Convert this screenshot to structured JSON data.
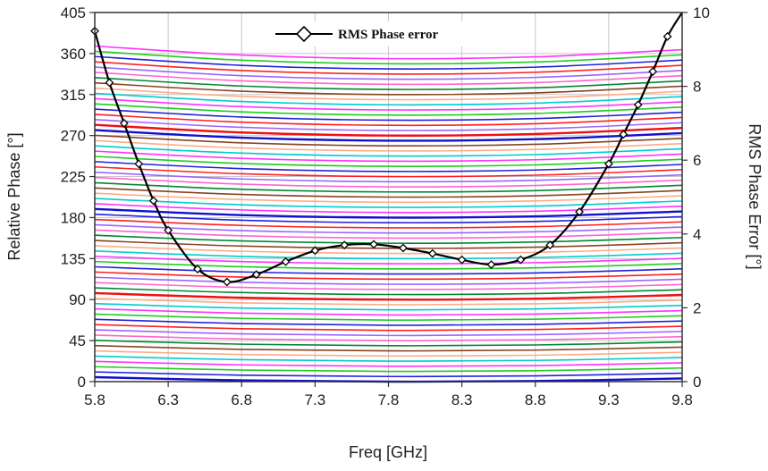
{
  "chart_data": {
    "type": "line",
    "title": "",
    "xlabel": "Freq [GHz]",
    "ylabel": "Relative Phase [°]",
    "y2label": "RMS Phase Error [°]",
    "xlim": [
      5.8,
      9.8
    ],
    "ylim": [
      0,
      405
    ],
    "y2lim": [
      0,
      10
    ],
    "x_ticks": [
      "5.8",
      "6.3",
      "6.8",
      "7.3",
      "7.8",
      "8.3",
      "8.8",
      "9.3",
      "9.8"
    ],
    "y_ticks": [
      "0",
      "45",
      "90",
      "135",
      "180",
      "225",
      "270",
      "315",
      "360",
      "405"
    ],
    "y2_ticks": [
      "0",
      "2",
      "4",
      "6",
      "8",
      "10"
    ],
    "grid": true,
    "legend": {
      "position": "top-center",
      "entries": [
        "RMS Phase error"
      ]
    },
    "phase_states": {
      "count": 64,
      "step_deg": 5.625,
      "x": [
        5.8,
        6.8,
        7.8,
        8.8,
        9.8
      ],
      "deviation_profile_deg": [
        14,
        4,
        0,
        2,
        10
      ],
      "colors": [
        "#ff2020",
        "#2222dd",
        "#22cc22",
        "#ff33ff",
        "#00cccc",
        "#ffaa88",
        "#884422",
        "#008833",
        "#ff66cc",
        "#9966ff"
      ]
    },
    "series": [
      {
        "name": "RMS Phase error",
        "axis": "right",
        "color": "#000000",
        "marker": "diamond",
        "x": [
          5.8,
          5.9,
          6.0,
          6.1,
          6.2,
          6.3,
          6.5,
          6.7,
          6.9,
          7.1,
          7.3,
          7.5,
          7.7,
          7.9,
          8.1,
          8.3,
          8.5,
          8.7,
          8.9,
          9.1,
          9.3,
          9.4,
          9.5,
          9.6,
          9.7,
          9.8
        ],
        "values": [
          9.5,
          8.1,
          7.0,
          5.9,
          4.9,
          4.1,
          3.05,
          2.7,
          2.9,
          3.25,
          3.55,
          3.7,
          3.72,
          3.62,
          3.47,
          3.3,
          3.17,
          3.3,
          3.7,
          4.6,
          5.9,
          6.7,
          7.5,
          8.4,
          9.35,
          10.0
        ]
      }
    ]
  }
}
